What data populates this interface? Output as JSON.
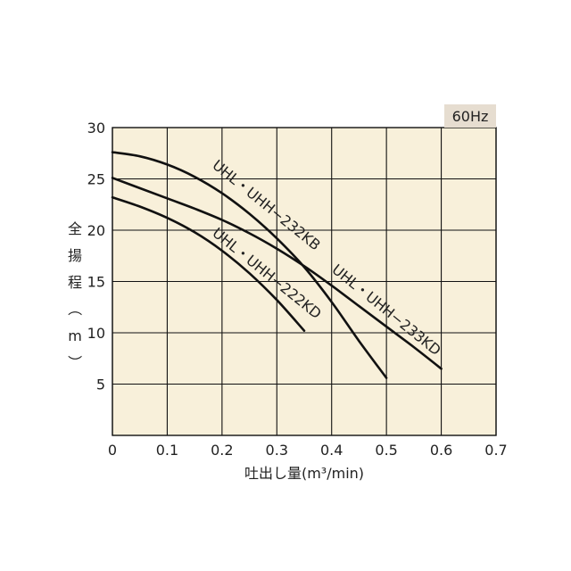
{
  "chart_data": {
    "type": "line",
    "badge": "60Hz",
    "xlabel": "吐出し量(m³/min)",
    "ylabel": "全揚程（m）",
    "ylabel_chars": [
      "全",
      "揚",
      "程",
      "（",
      "m",
      "）"
    ],
    "xlim": [
      0,
      0.7
    ],
    "ylim": [
      0,
      30
    ],
    "x_ticks": [
      0,
      0.1,
      0.2,
      0.3,
      0.4,
      0.5,
      0.6,
      0.7
    ],
    "x_tick_labels": [
      "0",
      "0.1",
      "0.2",
      "0.3",
      "0.4",
      "0.5",
      "0.6",
      "0.7"
    ],
    "y_ticks": [
      5,
      10,
      15,
      20,
      25,
      30
    ],
    "y_tick_labels": [
      "5",
      "10",
      "15",
      "20",
      "25",
      "30"
    ],
    "grid": true,
    "series": [
      {
        "name": "UHL・UHH−232KB",
        "x": [
          0,
          0.05,
          0.1,
          0.15,
          0.2,
          0.25,
          0.3,
          0.35,
          0.4,
          0.45,
          0.5
        ],
        "y": [
          27.6,
          27.2,
          26.4,
          25.2,
          23.6,
          21.6,
          19.2,
          16.4,
          13.0,
          9.2,
          5.6
        ]
      },
      {
        "name": "UHL・UHH−222KD",
        "x": [
          0,
          0.05,
          0.1,
          0.15,
          0.2,
          0.25,
          0.3,
          0.35
        ],
        "y": [
          23.2,
          22.3,
          21.2,
          19.8,
          18.0,
          15.8,
          13.2,
          10.2
        ]
      },
      {
        "name": "UHL・UHH−233KD",
        "x": [
          0,
          0.05,
          0.1,
          0.15,
          0.2,
          0.25,
          0.3,
          0.35,
          0.4,
          0.45,
          0.5,
          0.55,
          0.6
        ],
        "y": [
          25.1,
          24.1,
          23.1,
          22.1,
          21.0,
          19.7,
          18.2,
          16.5,
          14.6,
          12.6,
          10.6,
          8.6,
          6.5
        ]
      }
    ],
    "colors": {
      "plot_background": "#f8f0da",
      "grid": "#111111",
      "line": "#111111",
      "badge_background": "#e6ddd0"
    }
  }
}
